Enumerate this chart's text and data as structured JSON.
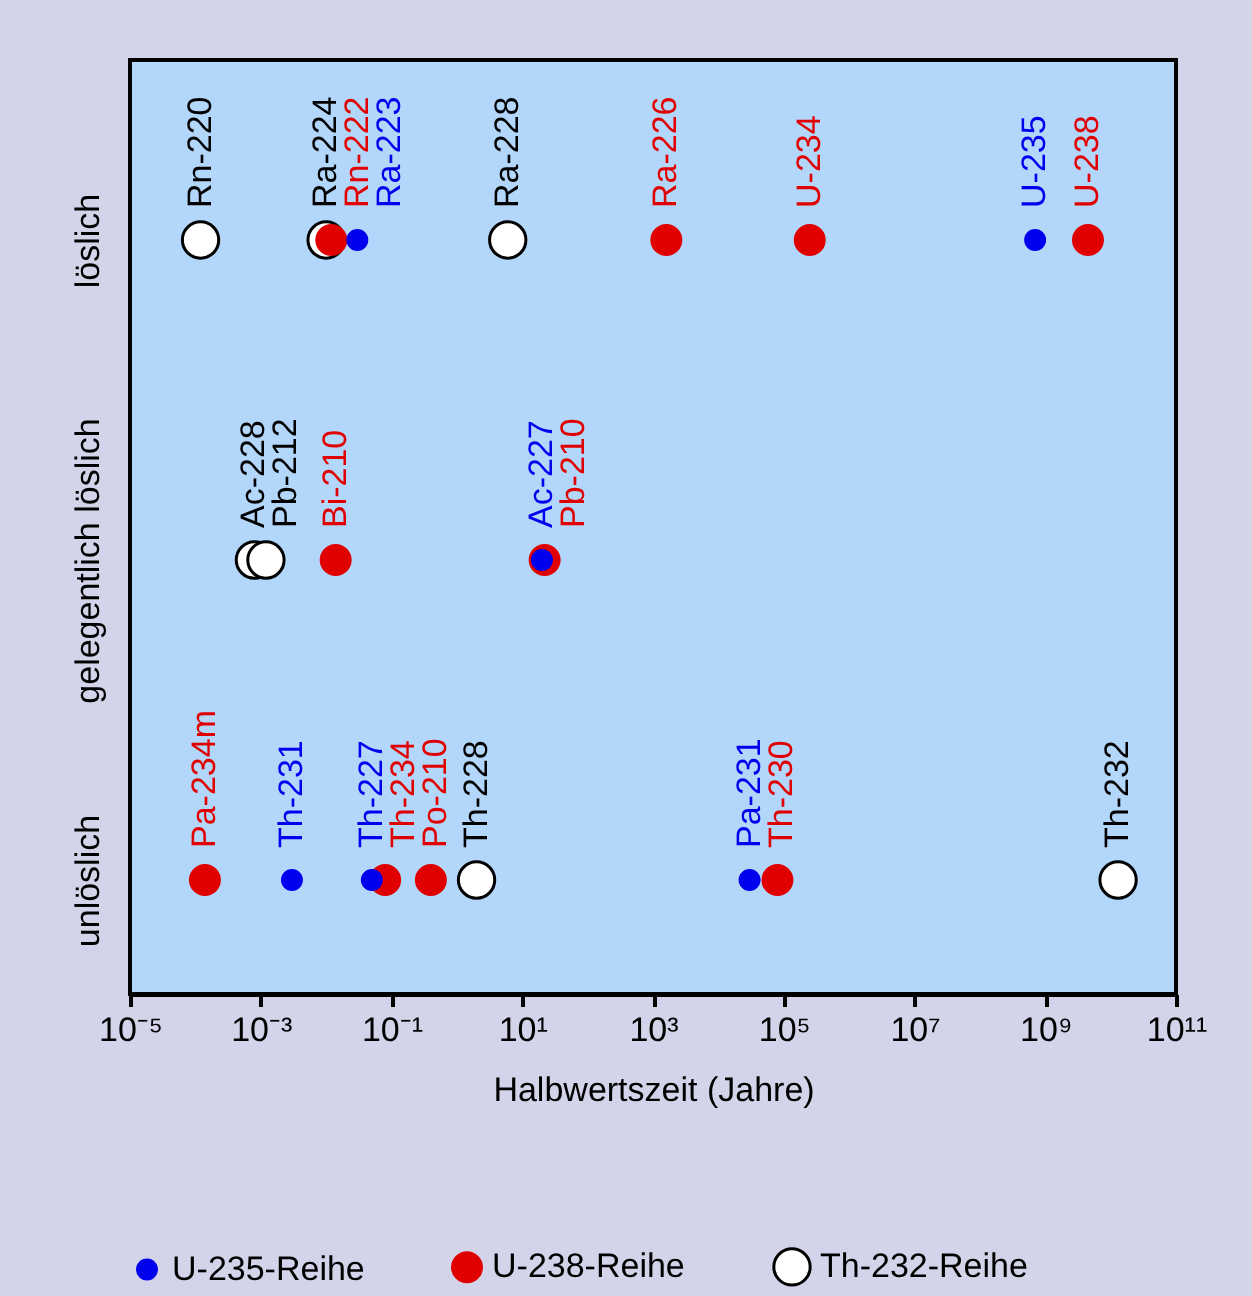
{
  "chart_data": {
    "type": "scatter",
    "orientation": "horizontal",
    "xlabel": "Halbwertszeit (Jahre)",
    "log": "x",
    "grid": false,
    "legend": "bottom",
    "marker": "circle",
    "categories": [
      "löslich",
      "gelegentlich löslich",
      "unlöslich"
    ],
    "xlim": [
      1e-05,
      100000000000.0
    ],
    "xticks": [
      {
        "value": 1e-05,
        "label": "10⁻⁵"
      },
      {
        "value": 0.001,
        "label": "10⁻³"
      },
      {
        "value": 0.1,
        "label": "10⁻¹"
      },
      {
        "value": 10,
        "label": "10¹"
      },
      {
        "value": 1000,
        "label": "10³"
      },
      {
        "value": 100000.0,
        "label": "10⁵"
      },
      {
        "value": 10000000.0,
        "label": "10⁷"
      },
      {
        "value": 1000000000.0,
        "label": "10⁹"
      },
      {
        "value": 100000000000.0,
        "label": "10¹¹"
      }
    ],
    "series": [
      {
        "name": "U-235-Reihe",
        "color": "#0000ee",
        "values": [
          0.03,
          700000000.0,
          20,
          0.003,
          0.05,
          30000.0
        ],
        "x": [
          "löslich",
          "löslich",
          "gelegentlich löslich",
          "unlöslich",
          "unlöslich",
          "unlöslich"
        ],
        "value_labels": [
          "Ra-223",
          "U-235",
          "Ac-227",
          "Th-231",
          "Th-227",
          "Pa-231"
        ]
      },
      {
        "name": "U-238-Reihe",
        "color": "#e00000",
        "values": [
          0.012,
          1600,
          250000.0,
          4500000000.0,
          0.014,
          22,
          0.00014,
          0.08,
          0.4,
          80000.0
        ],
        "x": [
          "löslich",
          "löslich",
          "löslich",
          "löslich",
          "gelegentlich löslich",
          "gelegentlich löslich",
          "unlöslich",
          "unlöslich",
          "unlöslich",
          "unlöslich"
        ],
        "value_labels": [
          "Rn-222",
          "Ra-226",
          "U-234",
          "U-238",
          "Bi-210",
          "Pb-210",
          "Pa-234m",
          "Th-234",
          "Po-210",
          "Th-230"
        ]
      },
      {
        "name": "Th-232-Reihe",
        "color": "#ffffff",
        "values": [
          0.00012,
          0.01,
          6,
          0.0008,
          0.0012,
          2,
          13000000000.0
        ],
        "x": [
          "löslich",
          "löslich",
          "löslich",
          "gelegentlich löslich",
          "gelegentlich löslich",
          "unlöslich",
          "unlöslich"
        ],
        "value_labels": [
          "Rn-220",
          "Ra-224",
          "Ra-228",
          "Ac-228",
          "Pb-212",
          "Th-228",
          "Th-232"
        ]
      }
    ]
  }
}
